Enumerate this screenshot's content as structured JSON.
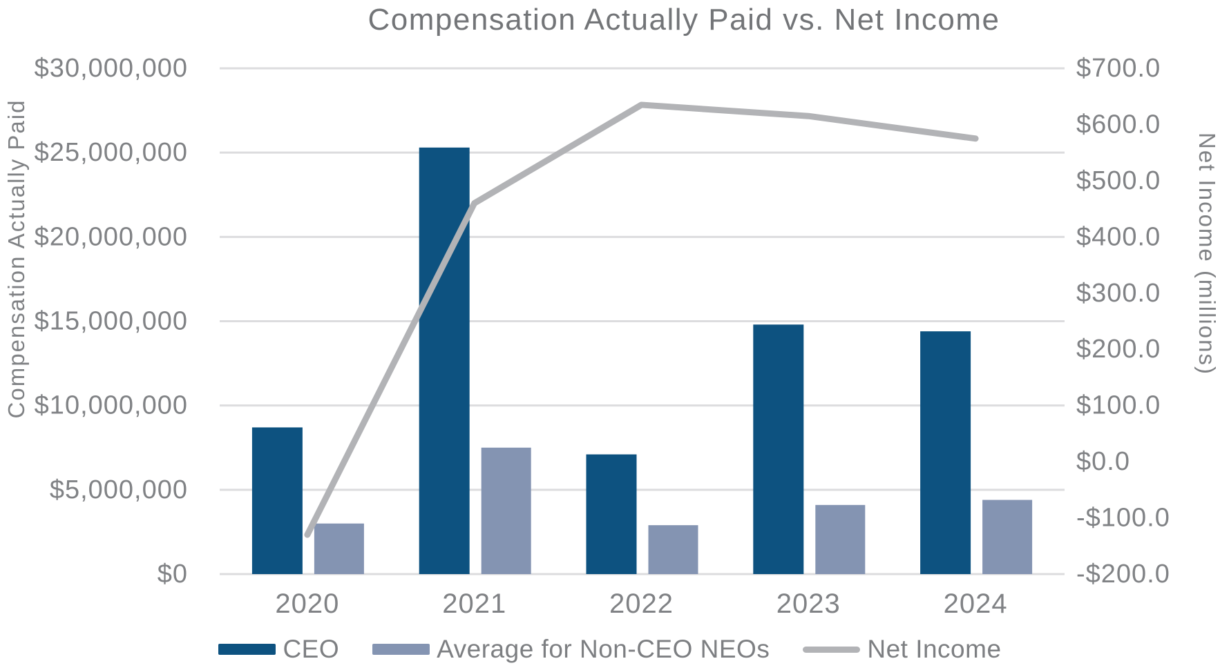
{
  "title": "Compensation Actually Paid vs. Net Income",
  "colors": {
    "ceo_bar": "#0d5280",
    "non_ceo_bar": "#8494b2",
    "net_income_line": "#b2b3b6",
    "text": "#808285",
    "title_text": "#737578",
    "gridline": "#dcdcde",
    "background": "#ffffff"
  },
  "left_axis": {
    "title": "Compensation Actually Paid",
    "ticks": [
      "$30,000,000",
      "$25,000,000",
      "$20,000,000",
      "$15,000,000",
      "$10,000,000",
      "$5,000,000",
      "$0"
    ]
  },
  "right_axis": {
    "title": "Net Income (millions)",
    "ticks": [
      "$700.0",
      "$600.0",
      "$500.0",
      "$400.0",
      "$300.0",
      "$200.0",
      "$100.0",
      "$0.0",
      "-$100.0",
      "-$200.0"
    ]
  },
  "legend": {
    "items": [
      {
        "label": "CEO",
        "swatch": "bar",
        "color": "#0d5280"
      },
      {
        "label": "Average for Non-CEO NEOs",
        "swatch": "bar",
        "color": "#8494b2"
      },
      {
        "label": "Net Income",
        "swatch": "line",
        "color": "#b2b3b6"
      }
    ]
  },
  "chart_data": {
    "type": "combo",
    "categories": [
      "2020",
      "2021",
      "2022",
      "2023",
      "2024"
    ],
    "series": [
      {
        "name": "CEO",
        "type": "bar",
        "axis": "left",
        "color": "#0d5280",
        "values": [
          8700000,
          25300000,
          7100000,
          14800000,
          14400000
        ]
      },
      {
        "name": "Average for Non-CEO NEOs",
        "type": "bar",
        "axis": "left",
        "color": "#8494b2",
        "values": [
          3000000,
          7500000,
          2900000,
          4100000,
          4400000
        ]
      },
      {
        "name": "Net Income",
        "type": "line",
        "axis": "right",
        "color": "#b2b3b6",
        "units": "millions",
        "values": [
          -130,
          460,
          635,
          615,
          575
        ]
      }
    ],
    "left_axis_range": [
      0,
      30000000
    ],
    "left_axis_step": 5000000,
    "right_axis_range": [
      -200,
      700
    ],
    "right_axis_step": 100,
    "grid": "horizontal",
    "legend_position": "bottom",
    "title": "Compensation Actually Paid vs. Net Income",
    "xlabel": "",
    "ylabel_left": "Compensation Actually Paid",
    "ylabel_right": "Net Income (millions)"
  }
}
